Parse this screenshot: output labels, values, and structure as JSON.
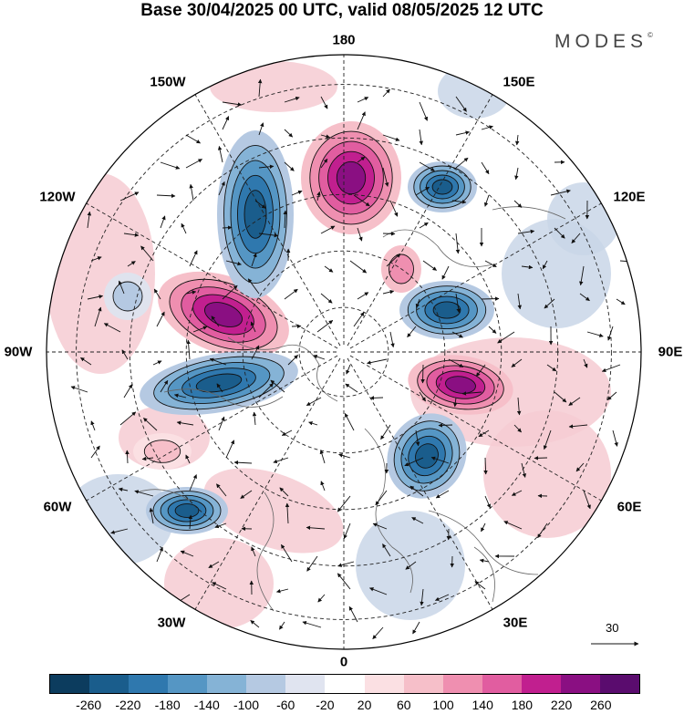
{
  "header": {
    "title": "Base 30/04/2025 00 UTC, valid 08/05/2025 12 UTC",
    "brand": "MODES",
    "brand_mark": "©"
  },
  "map": {
    "projection": "north-polar-stereographic",
    "longitude_labels": [
      "180",
      "150E",
      "120E",
      "90E",
      "60E",
      "30E",
      "0",
      "30W",
      "60W",
      "90W",
      "120W",
      "150W"
    ],
    "reference_vector": {
      "value": "30"
    },
    "fill_colors": {
      "neg_strong": "#2f6f9f",
      "neg_mid": "#6aa3c8",
      "neg_weak": "#c9d6e8",
      "pos_weak": "#f6cbd2",
      "pos_mid": "#e9739f",
      "pos_strong": "#7c1a7a"
    }
  },
  "colorbar": {
    "colors": [
      "#0c3c5e",
      "#1a5d8c",
      "#2f78ae",
      "#5596c4",
      "#85b3d6",
      "#b5c9e2",
      "#e0e4f0",
      "#ffffff",
      "#fbe0e3",
      "#f6bfc9",
      "#ef8fb0",
      "#e15da0",
      "#c11f8f",
      "#8a0f82",
      "#5a0c6e"
    ],
    "labels": [
      "-260",
      "-220",
      "-180",
      "-140",
      "-100",
      "-60",
      "-20",
      "20",
      "60",
      "100",
      "140",
      "180",
      "220",
      "260"
    ]
  }
}
